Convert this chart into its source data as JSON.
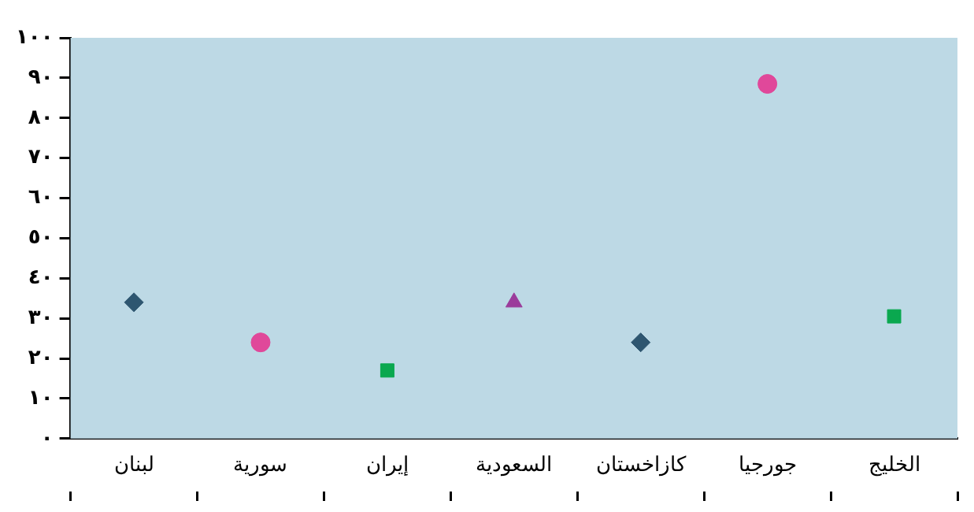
{
  "chart_data": {
    "type": "scatter",
    "categories": [
      "لبنان",
      "سورية",
      "إيران",
      "السعودية",
      "كازاخستان",
      "جورجيا",
      "الخليج"
    ],
    "series": [
      {
        "color": "#2e5670",
        "marker": "diamond",
        "x": [
          "لبنان"
        ],
        "values": [
          34
        ]
      },
      {
        "color": "#e0489a",
        "marker": "circle",
        "x": [
          "سورية"
        ],
        "values": [
          24
        ]
      },
      {
        "color": "#0aa84f",
        "marker": "square",
        "x": [
          "إيران"
        ],
        "values": [
          17
        ]
      },
      {
        "color": "#9b3c9b",
        "marker": "triangle",
        "x": [
          "السعودية"
        ],
        "values": [
          34
        ]
      },
      {
        "color": "#2e5670",
        "marker": "diamond",
        "x": [
          "كازاخستان"
        ],
        "values": [
          24
        ]
      },
      {
        "color": "#e0489a",
        "marker": "circle",
        "x": [
          "جورجيا"
        ],
        "values": [
          88.5
        ]
      },
      {
        "color": "#0aa84f",
        "marker": "square",
        "x": [
          "الخليج"
        ],
        "values": [
          30.5
        ]
      }
    ],
    "ylim": [
      0,
      100
    ],
    "yticks": [
      {
        "value": 0,
        "label": "٠"
      },
      {
        "value": 10,
        "label": "١٠"
      },
      {
        "value": 20,
        "label": "٢٠"
      },
      {
        "value": 30,
        "label": "٣٠"
      },
      {
        "value": 40,
        "label": "٤٠"
      },
      {
        "value": 50,
        "label": "٥٠"
      },
      {
        "value": 60,
        "label": "٦٠"
      },
      {
        "value": 70,
        "label": "٧٠"
      },
      {
        "value": 80,
        "label": "٨٠"
      },
      {
        "value": 90,
        "label": "٩٠"
      },
      {
        "value": 100,
        "label": "١٠٠"
      }
    ],
    "grid": false,
    "legend": false
  }
}
